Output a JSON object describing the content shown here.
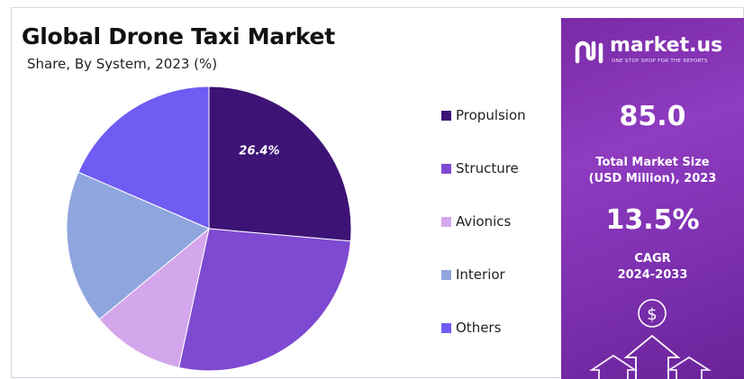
{
  "header": {
    "title": "Global Drone Taxi Market",
    "subtitle": "Share, By System, 2023 (%)"
  },
  "chart_data": {
    "type": "pie",
    "title": "Global Drone Taxi Market",
    "subtitle": "Share, By System, 2023 (%)",
    "categories": [
      "Propulsion",
      "Structure",
      "Avionics",
      "Interior",
      "Others"
    ],
    "values": [
      26.4,
      27.0,
      10.6,
      17.5,
      18.5
    ],
    "colors": [
      "#3d1376",
      "#7e4ad1",
      "#d4a7ec",
      "#8fa5de",
      "#6f5cf2"
    ],
    "data_labels": [
      "26.4%",
      "",
      "",
      "",
      ""
    ],
    "legend_position": "right"
  },
  "legend": {
    "items": [
      {
        "label": "Propulsion",
        "color": "#3d1376"
      },
      {
        "label": "Structure",
        "color": "#7e4ad1"
      },
      {
        "label": "Avionics",
        "color": "#d4a7ec"
      },
      {
        "label": "Interior",
        "color": "#8fa5de"
      },
      {
        "label": "Others",
        "color": "#6f5cf2"
      }
    ]
  },
  "sidebar": {
    "brand": "market.us",
    "tagline": "ONE STOP SHOP FOR THE REPORTS",
    "logo_icon": "market-us-logo-icon",
    "market_size_value": "85.0",
    "market_size_label_line1": "Total Market Size",
    "market_size_label_line2": "(USD Million), 2023",
    "cagr_value": "13.5%",
    "cagr_label_line1": "CAGR",
    "cagr_label_line2": "2024-2033",
    "decor_icons": [
      "dollar-icon",
      "up-arrow-icon"
    ],
    "background_color": "#8e3cc0"
  }
}
